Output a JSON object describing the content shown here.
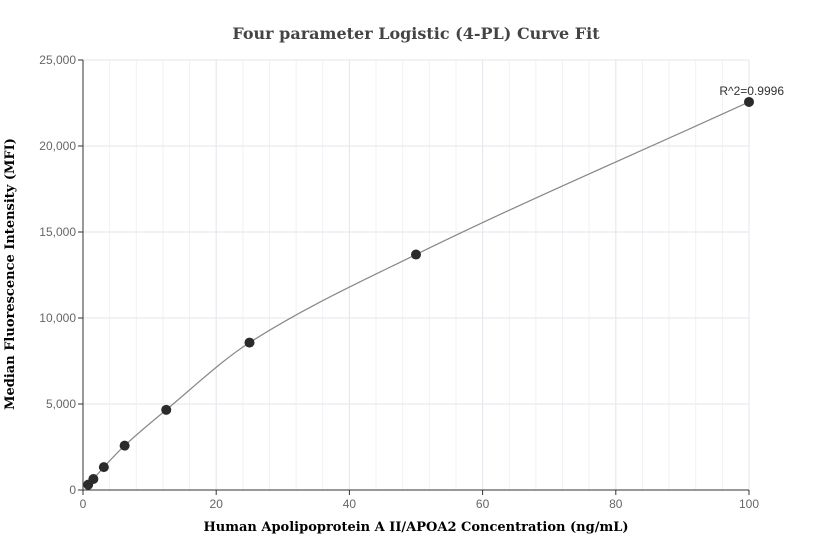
{
  "chart_data": {
    "type": "scatter",
    "title": "Four parameter Logistic (4-PL) Curve Fit",
    "xlabel": "Human Apolipoprotein A II/APOA2 Concentration (ng/mL)",
    "ylabel": "Median Fluorescence Intensity (MFI)",
    "xlim": [
      0,
      100
    ],
    "ylim": [
      0,
      25000
    ],
    "x_ticks": [
      0,
      20,
      40,
      60,
      80,
      100
    ],
    "x_tick_labels": [
      "0",
      "20",
      "40",
      "60",
      "80",
      "100"
    ],
    "y_ticks": [
      0,
      5000,
      10000,
      15000,
      20000,
      25000
    ],
    "y_tick_labels": [
      "0",
      "5,000",
      "10,000",
      "15,000",
      "20,000",
      "25,000"
    ],
    "grid": true,
    "series": [
      {
        "points": [
          {
            "x": 0.78,
            "y": 310
          },
          {
            "x": 1.56,
            "y": 640
          },
          {
            "x": 3.13,
            "y": 1330
          },
          {
            "x": 6.25,
            "y": 2580
          },
          {
            "x": 12.5,
            "y": 4660
          },
          {
            "x": 25,
            "y": 8570
          },
          {
            "x": 50,
            "y": 13690
          },
          {
            "x": 100,
            "y": 22560
          }
        ]
      }
    ],
    "annotation": "R^2=0.9996",
    "colors": {
      "points": "#2b2b2b",
      "curve": "#888888",
      "grid": "#e6e6ee",
      "axis": "#333333"
    }
  }
}
